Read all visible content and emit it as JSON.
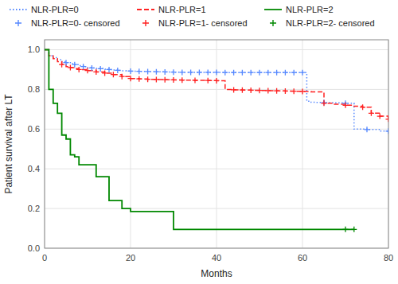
{
  "chart_data": {
    "type": "step",
    "xlabel": "Months",
    "ylabel": "Patient survival after LT",
    "xlim": [
      0,
      80
    ],
    "ylim": [
      0.0,
      1.05
    ],
    "xticks": [
      0,
      20,
      40,
      60,
      80
    ],
    "yticks": [
      {
        "value": 0.0,
        "label": "0.0"
      },
      0.2,
      0.4,
      0.6,
      0.8,
      {
        "value": 1.0,
        "label": "1.0"
      }
    ],
    "grid": true,
    "legend": "top",
    "series": [
      {
        "name": "NLR-PLR=0",
        "color": "#5588FF",
        "line_style": "dotted",
        "x": [
          0,
          1,
          2,
          3,
          4,
          5,
          6,
          7,
          8,
          9,
          10,
          11,
          12,
          14,
          15,
          16,
          17,
          18,
          19,
          20,
          22,
          24,
          26,
          28,
          30,
          32,
          34,
          36,
          38,
          40,
          42,
          44,
          46,
          48,
          50,
          52,
          54,
          56,
          58,
          60,
          61,
          62,
          63,
          65,
          67,
          70,
          72,
          75,
          78,
          80
        ],
        "values": [
          1.0,
          0.97,
          0.96,
          0.95,
          0.94,
          0.935,
          0.93,
          0.925,
          0.92,
          0.915,
          0.91,
          0.908,
          0.906,
          0.902,
          0.9,
          0.898,
          0.896,
          0.894,
          0.893,
          0.892,
          0.891,
          0.89,
          0.889,
          0.888,
          0.887,
          0.886,
          0.886,
          0.886,
          0.886,
          0.886,
          0.885,
          0.885,
          0.885,
          0.885,
          0.885,
          0.885,
          0.885,
          0.885,
          0.885,
          0.885,
          0.74,
          0.735,
          0.734,
          0.733,
          0.732,
          0.73,
          0.6,
          0.598,
          0.59,
          0.59
        ]
      },
      {
        "name": "NLR-PLR=1",
        "color": "#FF2222",
        "line_style": "dashed",
        "x": [
          0,
          1,
          2,
          3,
          4,
          5,
          6,
          7,
          8,
          10,
          12,
          14,
          16,
          18,
          20,
          22,
          24,
          26,
          28,
          30,
          32,
          35,
          38,
          40,
          42,
          44,
          46,
          48,
          50,
          52,
          54,
          56,
          58,
          60,
          62,
          65,
          67,
          70,
          72,
          74,
          76,
          78,
          80
        ],
        "values": [
          1.0,
          0.97,
          0.955,
          0.94,
          0.925,
          0.915,
          0.91,
          0.905,
          0.9,
          0.895,
          0.888,
          0.882,
          0.875,
          0.865,
          0.855,
          0.853,
          0.851,
          0.85,
          0.849,
          0.848,
          0.847,
          0.846,
          0.845,
          0.844,
          0.8,
          0.798,
          0.797,
          0.796,
          0.795,
          0.794,
          0.793,
          0.792,
          0.791,
          0.79,
          0.788,
          0.73,
          0.725,
          0.72,
          0.715,
          0.71,
          0.68,
          0.665,
          0.65
        ]
      },
      {
        "name": "NLR-PLR=2",
        "color": "#008800",
        "line_style": "solid",
        "x": [
          0,
          1,
          2,
          3,
          4,
          5,
          6,
          7,
          8,
          9,
          10,
          11,
          12,
          13,
          14,
          15,
          16,
          18,
          20,
          22,
          25,
          28,
          30,
          35,
          40,
          45,
          50,
          55,
          60,
          65,
          70,
          72
        ],
        "values": [
          1.0,
          0.8,
          0.73,
          0.68,
          0.57,
          0.55,
          0.47,
          0.46,
          0.42,
          0.42,
          0.42,
          0.42,
          0.36,
          0.36,
          0.36,
          0.24,
          0.24,
          0.2,
          0.185,
          0.185,
          0.185,
          0.185,
          0.095,
          0.095,
          0.095,
          0.095,
          0.095,
          0.095,
          0.095,
          0.095,
          0.095,
          0.095
        ]
      },
      {
        "name": "NLR-PLR=0- censored",
        "color": "#5588FF",
        "type": "scatter",
        "marker": "plus",
        "x": [
          5,
          7,
          9,
          11,
          13,
          15,
          17,
          20,
          22,
          24,
          26,
          28,
          30,
          32,
          34,
          36,
          38,
          40,
          42,
          44,
          46,
          48,
          50,
          52,
          54,
          56,
          58,
          60,
          65,
          70,
          75,
          80
        ],
        "values": [
          0.935,
          0.925,
          0.915,
          0.908,
          0.904,
          0.9,
          0.896,
          0.892,
          0.891,
          0.89,
          0.889,
          0.888,
          0.887,
          0.886,
          0.886,
          0.886,
          0.886,
          0.886,
          0.885,
          0.885,
          0.885,
          0.885,
          0.885,
          0.885,
          0.885,
          0.885,
          0.885,
          0.885,
          0.733,
          0.73,
          0.598,
          0.59
        ]
      },
      {
        "name": "NLR-PLR=1- censored",
        "color": "#FF2222",
        "type": "scatter",
        "marker": "plus",
        "x": [
          4,
          6,
          8,
          10,
          12,
          14,
          16,
          18,
          20,
          22,
          24,
          26,
          28,
          30,
          32,
          35,
          38,
          40,
          44,
          46,
          48,
          50,
          52,
          54,
          56,
          58,
          60,
          65,
          70,
          74,
          76,
          78,
          80
        ],
        "values": [
          0.925,
          0.91,
          0.9,
          0.895,
          0.888,
          0.882,
          0.875,
          0.865,
          0.855,
          0.853,
          0.851,
          0.85,
          0.849,
          0.848,
          0.847,
          0.846,
          0.845,
          0.844,
          0.798,
          0.797,
          0.796,
          0.795,
          0.794,
          0.793,
          0.792,
          0.791,
          0.79,
          0.73,
          0.72,
          0.71,
          0.68,
          0.665,
          0.65
        ]
      },
      {
        "name": "NLR-PLR=2- censored",
        "color": "#008800",
        "type": "scatter",
        "marker": "plus",
        "x": [
          70,
          72
        ],
        "values": [
          0.095,
          0.095
        ]
      }
    ]
  }
}
